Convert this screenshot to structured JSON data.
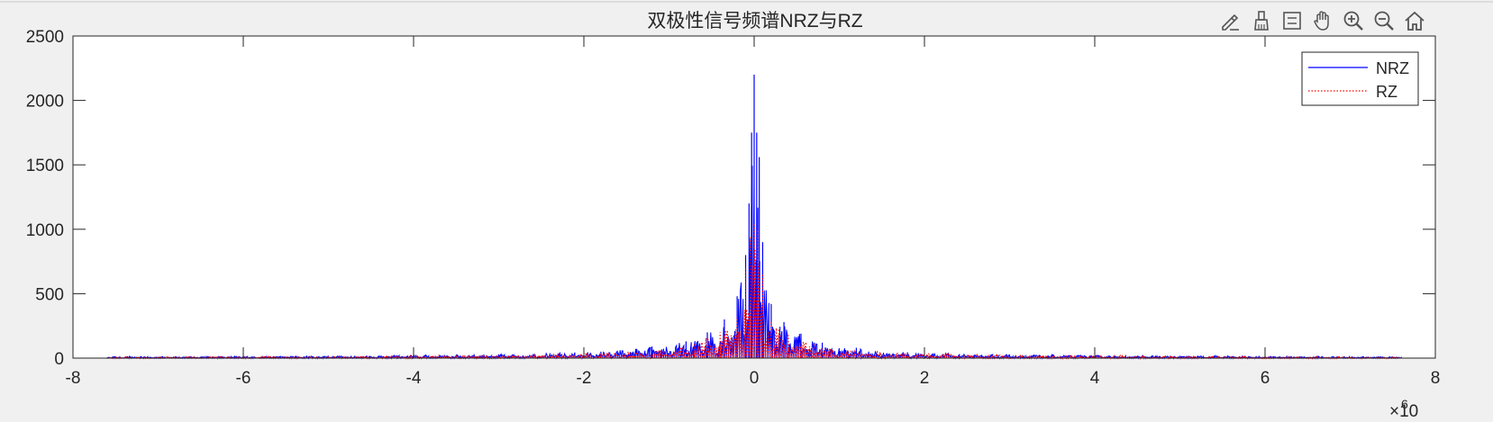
{
  "toolbar": {
    "tools": [
      "edit-plot-icon",
      "brush-icon",
      "data-cursor-icon",
      "pan-hand-icon",
      "zoom-in-icon",
      "zoom-out-icon",
      "home-icon"
    ]
  },
  "colors": {
    "nrz": "#0000ff",
    "rz": "#ff0000",
    "axis": "#262626",
    "background": "#f0f0f0",
    "plot_bg": "#ffffff"
  },
  "chart_data": {
    "type": "line",
    "title": "双极性信号频谱NRZ与RZ",
    "xlabel": "",
    "ylabel": "",
    "xlim": [
      -8,
      8
    ],
    "ylim": [
      0,
      2500
    ],
    "x_exponent_label": "×10",
    "x_exponent_power": "6",
    "x_ticks": [
      -8,
      -6,
      -4,
      -2,
      0,
      2,
      4,
      6,
      8
    ],
    "x_tick_labels": [
      "-8",
      "-6",
      "-4",
      "-2",
      "0",
      "2",
      "4",
      "6",
      "8"
    ],
    "y_ticks": [
      0,
      500,
      1000,
      1500,
      2000,
      2500
    ],
    "y_tick_labels": [
      "0",
      "500",
      "1000",
      "1500",
      "2000",
      "2500"
    ],
    "grid": false,
    "legend_position": "top-right",
    "series": [
      {
        "name": "NRZ",
        "style": "solid",
        "color": "#0000ff",
        "x_range": [
          -7.6,
          7.6
        ],
        "peaks": [
          {
            "x": 0.0,
            "y": 2200
          },
          {
            "x": -0.03,
            "y": 1750
          },
          {
            "x": 0.03,
            "y": 1750
          },
          {
            "x": -0.06,
            "y": 1200
          },
          {
            "x": 0.06,
            "y": 1560
          },
          {
            "x": -0.1,
            "y": 800
          },
          {
            "x": 0.1,
            "y": 900
          },
          {
            "x": -0.2,
            "y": 480
          },
          {
            "x": 0.2,
            "y": 420
          },
          {
            "x": -0.35,
            "y": 300
          },
          {
            "x": 0.35,
            "y": 280
          },
          {
            "x": -0.55,
            "y": 200
          },
          {
            "x": 0.55,
            "y": 190
          },
          {
            "x": -0.8,
            "y": 130
          },
          {
            "x": 0.8,
            "y": 120
          },
          {
            "x": -1.2,
            "y": 90
          },
          {
            "x": 1.2,
            "y": 80
          },
          {
            "x": -1.8,
            "y": 50
          },
          {
            "x": 1.8,
            "y": 45
          },
          {
            "x": -3.0,
            "y": 30
          },
          {
            "x": 3.0,
            "y": 28
          },
          {
            "x": -5.0,
            "y": 18
          },
          {
            "x": 5.0,
            "y": 18
          },
          {
            "x": -7.5,
            "y": 12
          },
          {
            "x": 7.5,
            "y": 12
          }
        ]
      },
      {
        "name": "RZ",
        "style": "dotted",
        "color": "#ff0000",
        "x_range": [
          -7.6,
          7.6
        ],
        "peaks": [
          {
            "x": 0.0,
            "y": 1050
          },
          {
            "x": -0.04,
            "y": 950
          },
          {
            "x": 0.04,
            "y": 1000
          },
          {
            "x": -0.1,
            "y": 700
          },
          {
            "x": 0.1,
            "y": 650
          },
          {
            "x": -0.2,
            "y": 320
          },
          {
            "x": 0.2,
            "y": 280
          },
          {
            "x": -0.4,
            "y": 200
          },
          {
            "x": 0.4,
            "y": 180
          },
          {
            "x": -0.7,
            "y": 120
          },
          {
            "x": 0.7,
            "y": 110
          },
          {
            "x": -1.1,
            "y": 70
          },
          {
            "x": 1.1,
            "y": 65
          },
          {
            "x": -1.8,
            "y": 45
          },
          {
            "x": 1.8,
            "y": 40
          },
          {
            "x": -3.0,
            "y": 25
          },
          {
            "x": 3.0,
            "y": 25
          },
          {
            "x": -5.0,
            "y": 15
          },
          {
            "x": 5.0,
            "y": 15
          },
          {
            "x": -7.5,
            "y": 10
          },
          {
            "x": 7.5,
            "y": 10
          }
        ]
      }
    ]
  }
}
